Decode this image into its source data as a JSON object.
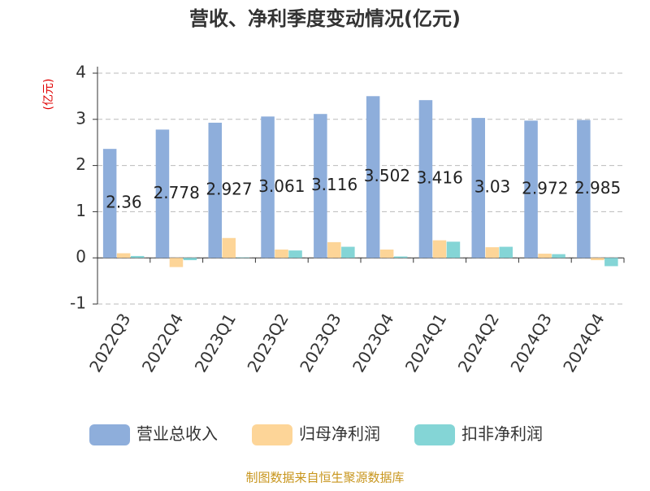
{
  "chart_data": {
    "type": "bar",
    "title": "营收、净利季度变动情况(亿元)",
    "y_label": "(亿元)",
    "source": "制图数据来自恒生聚源数据库",
    "categories": [
      "2022Q3",
      "2022Q4",
      "2023Q1",
      "2023Q2",
      "2023Q3",
      "2023Q4",
      "2024Q1",
      "2024Q2",
      "2024Q3",
      "2024Q4"
    ],
    "series": [
      {
        "name": "营业总收入",
        "color": "#8eaedb",
        "values": [
          2.36,
          2.778,
          2.927,
          3.061,
          3.116,
          3.502,
          3.416,
          3.03,
          2.972,
          2.985
        ],
        "show_labels": true
      },
      {
        "name": "归母净利润",
        "color": "#fdd598",
        "values": [
          0.1,
          -0.2,
          0.43,
          0.18,
          0.34,
          0.18,
          0.38,
          0.23,
          0.09,
          -0.05
        ]
      },
      {
        "name": "扣非净利润",
        "color": "#84d5d6",
        "values": [
          0.04,
          -0.05,
          0.01,
          0.16,
          0.24,
          0.03,
          0.35,
          0.24,
          0.08,
          -0.18
        ]
      }
    ],
    "ylim": [
      -1,
      4
    ],
    "yticks": [
      -1,
      0,
      1,
      2,
      3,
      4
    ],
    "grid": true,
    "legend": "bottom"
  }
}
